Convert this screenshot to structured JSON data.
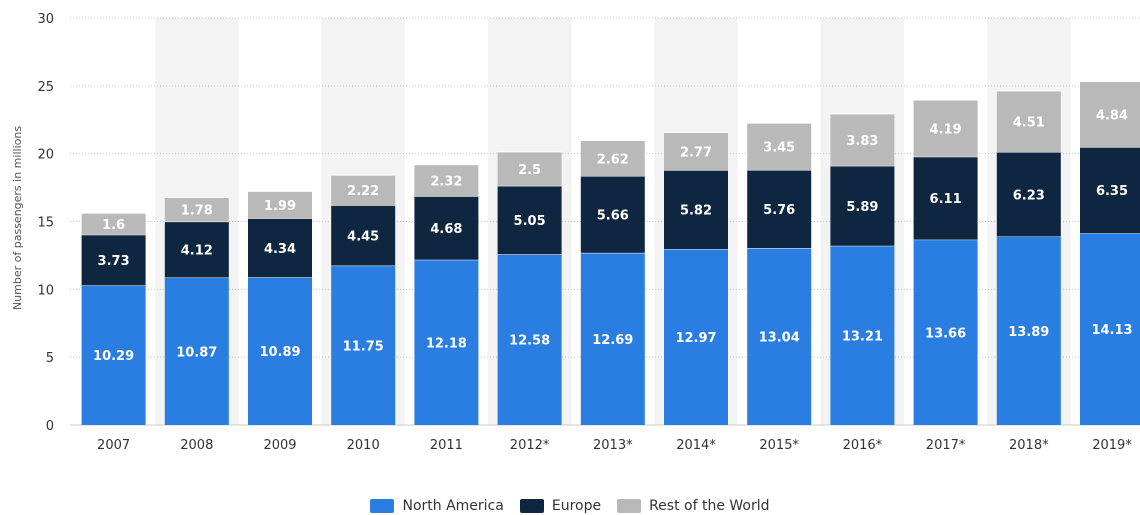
{
  "chart_data": {
    "type": "bar",
    "stacked": true,
    "categories": [
      "2007",
      "2008",
      "2009",
      "2010",
      "2011",
      "2012*",
      "2013*",
      "2014*",
      "2015*",
      "2016*",
      "2017*",
      "2018*",
      "2019*"
    ],
    "series": [
      {
        "name": "North America",
        "color": "#2a7de1",
        "label_color": "#ffffff",
        "values": [
          10.29,
          10.87,
          10.89,
          11.75,
          12.18,
          12.58,
          12.69,
          12.97,
          13.04,
          13.21,
          13.66,
          13.89,
          14.13
        ]
      },
      {
        "name": "Europe",
        "color": "#0f2640",
        "label_color": "#ffffff",
        "values": [
          3.73,
          4.12,
          4.34,
          4.45,
          4.68,
          5.05,
          5.66,
          5.82,
          5.76,
          5.89,
          6.11,
          6.23,
          6.35
        ]
      },
      {
        "name": "Rest of the World",
        "color": "#b9b9b9",
        "label_color": "#ffffff",
        "values": [
          1.6,
          1.78,
          1.99,
          2.22,
          2.32,
          2.5,
          2.62,
          2.77,
          3.45,
          3.83,
          4.19,
          4.51,
          4.84
        ]
      }
    ],
    "ylabel": "Number of passengers in millions",
    "ylim": [
      0,
      30
    ],
    "yticks": [
      0,
      5,
      10,
      15,
      20,
      25,
      30
    ],
    "grid": true,
    "legend": "bottom-center"
  }
}
